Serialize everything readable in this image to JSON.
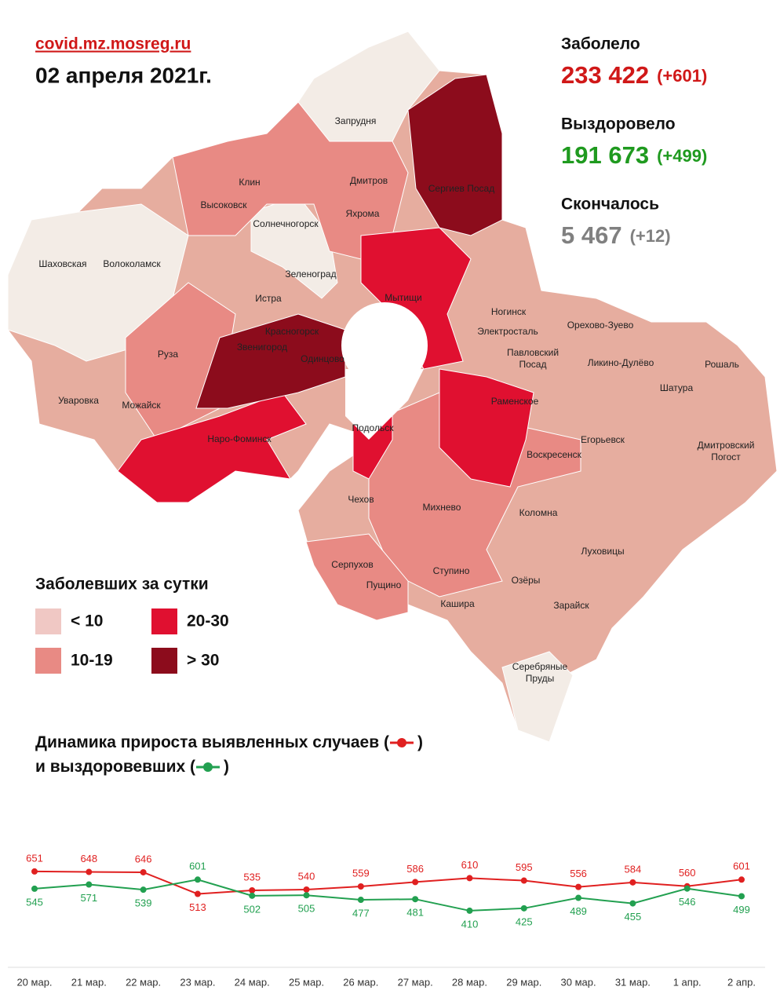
{
  "header": {
    "site": "covid.mz.mosreg.ru",
    "date": "02 апреля 2021г."
  },
  "stats": [
    {
      "label": "Заболело",
      "value": "233 422",
      "delta": "(+601)",
      "color": "#d01818"
    },
    {
      "label": "Выздоровело",
      "value": "191 673",
      "delta": "(+499)",
      "color": "#1f9a1f"
    },
    {
      "label": "Скончалось",
      "value": "5 467",
      "delta": "(+12)",
      "color": "#808080"
    }
  ],
  "legend": {
    "title": "Заболевших за сутки",
    "items": [
      {
        "label": "< 10",
        "color": "#f0c8c4"
      },
      {
        "label": "20-30",
        "color": "#e01030"
      },
      {
        "label": "10-19",
        "color": "#e88a84"
      },
      {
        "label": "> 30",
        "color": "#8c0c1c"
      }
    ]
  },
  "map_labels": [
    "Запрудня",
    "Клин",
    "Дмитров",
    "Сергиев Посад",
    "Высоковск",
    "Яхрома",
    "Солнечногорск",
    "Шаховская",
    "Волоколамск",
    "Зеленоград",
    "Истра",
    "Мытищи",
    "Ногинск",
    "Орехово-Зуево",
    "Красногорск",
    "Электросталь",
    "Павловский",
    "Посад",
    "Ликино-Дулёво",
    "Рошаль",
    "Руза",
    "Звенигород",
    "Одинцово",
    "Шатура",
    "Раменское",
    "Уваровка",
    "Можайск",
    "Наро-Фоминск",
    "Егорьевск",
    "Дмитровский",
    "Погост",
    "Воскресенск",
    "Подольск",
    "Чехов",
    "Михнево",
    "Коломна",
    "Луховицы",
    "Серпухов",
    "Ступино",
    "Пущино",
    "Озёры",
    "Кашира",
    "Зарайск",
    "Серебряные",
    "Пруды"
  ],
  "chart_data": {
    "type": "line",
    "title_parts": [
      "Динамика прироста выявленных случаев (",
      ")",
      "и выздоровевших (",
      ")"
    ],
    "categories": [
      "20 мар.",
      "21 мар.",
      "22 мар.",
      "23 мар.",
      "24 мар.",
      "25 мар.",
      "26 мар.",
      "27 мар.",
      "28 мар.",
      "29 мар.",
      "30 мар.",
      "31 мар.",
      "1 апр.",
      "2 апр."
    ],
    "series": [
      {
        "color": "#e02020",
        "values": [
          651,
          648,
          646,
          513,
          535,
          540,
          559,
          586,
          610,
          595,
          556,
          584,
          560,
          601
        ]
      },
      {
        "color": "#22a050",
        "values": [
          545,
          571,
          539,
          601,
          502,
          505,
          477,
          481,
          410,
          425,
          489,
          455,
          546,
          499
        ]
      }
    ],
    "ylim": [
      0,
      1000
    ]
  }
}
